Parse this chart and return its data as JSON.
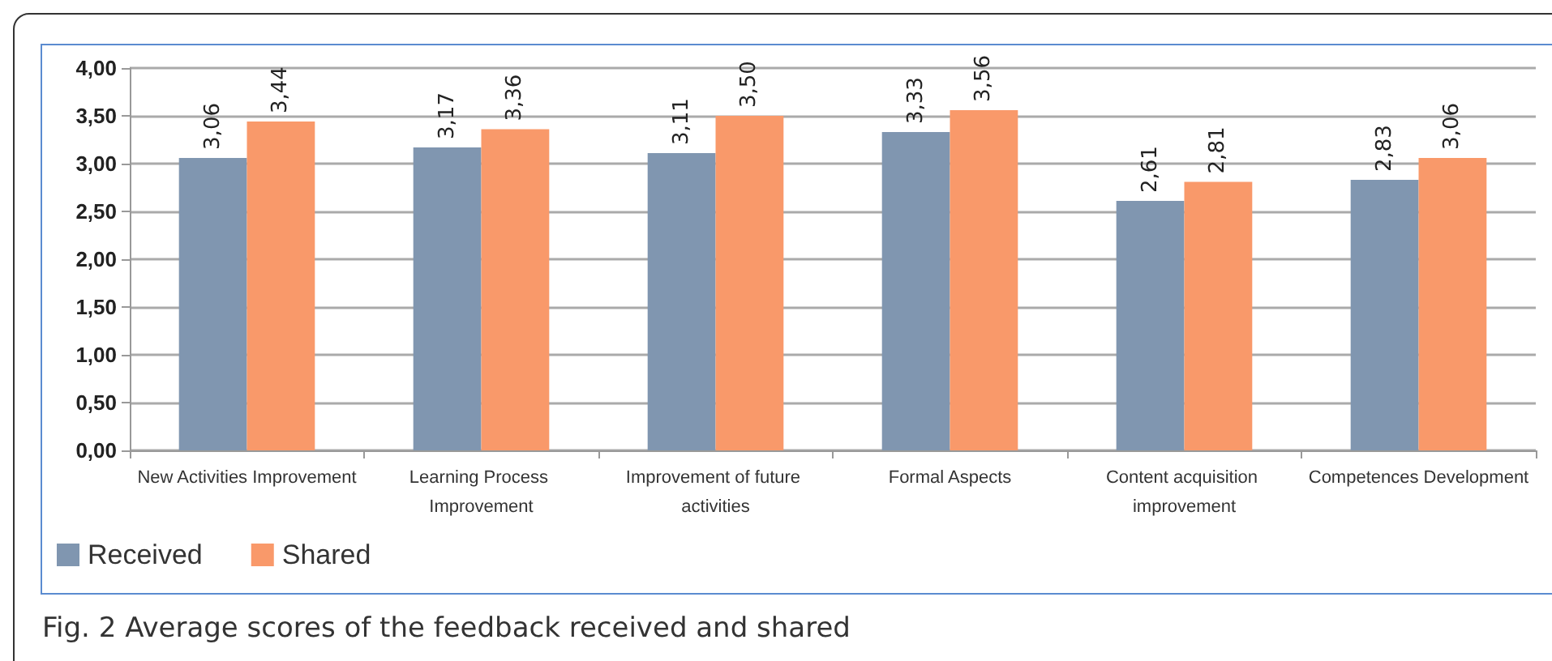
{
  "chart_data": {
    "type": "bar",
    "categories": [
      "New Activities Improvement",
      "Learning Process Improvement",
      "Improvement of future activities",
      "Formal Aspects",
      "Content acquisition improvement",
      "Competences Development"
    ],
    "series": [
      {
        "name": "Received",
        "color": "#8096b0",
        "values": [
          3.06,
          3.17,
          3.11,
          3.33,
          2.61,
          2.83
        ],
        "value_labels": [
          "3,06",
          "3,17",
          "3,11",
          "3,33",
          "2,61",
          "2,83"
        ]
      },
      {
        "name": "Shared",
        "color": "#f9996a",
        "values": [
          3.44,
          3.36,
          3.5,
          3.56,
          2.81,
          3.06
        ],
        "value_labels": [
          "3,44",
          "3,36",
          "3,50",
          "3,56",
          "2,81",
          "3,06"
        ]
      }
    ],
    "ylim": [
      0,
      4
    ],
    "yticks": [
      {
        "value": 0,
        "label": "0,00"
      },
      {
        "value": 0.5,
        "label": "0,50"
      },
      {
        "value": 1,
        "label": "1,00"
      },
      {
        "value": 1.5,
        "label": "1,50"
      },
      {
        "value": 2,
        "label": "2,00"
      },
      {
        "value": 2.5,
        "label": "2,50"
      },
      {
        "value": 3,
        "label": "3,00"
      },
      {
        "value": 3.5,
        "label": "3,50"
      },
      {
        "value": 4,
        "label": "4,00"
      }
    ],
    "grid": "y",
    "legend": "bottom left",
    "annotations": [
      "Fig. 2 Average scores of the feedback received and shared"
    ]
  }
}
